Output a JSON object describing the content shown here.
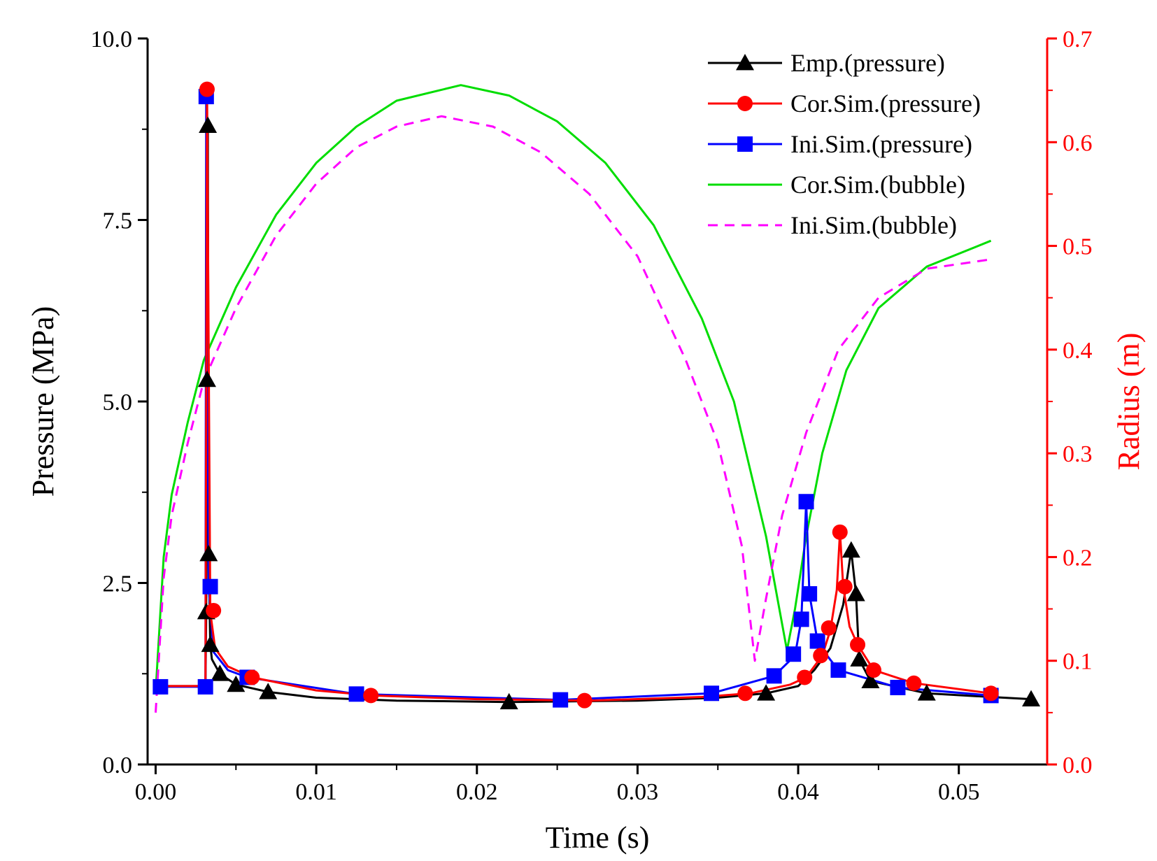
{
  "chart_data": {
    "type": "line",
    "xlabel": "Time (s)",
    "ylabel_left": "Pressure (MPa)",
    "ylabel_right": "Radius (m)",
    "xlim": [
      -0.0005,
      0.0555
    ],
    "ylim_left": [
      0,
      10
    ],
    "ylim_right": [
      0,
      0.7
    ],
    "x_ticks": [
      "0.00",
      "0.01",
      "0.02",
      "0.03",
      "0.04",
      "0.05"
    ],
    "y_left_ticks": [
      "0.0",
      "2.5",
      "5.0",
      "7.5",
      "10.0"
    ],
    "y_right_ticks": [
      "0.0",
      "0.1",
      "0.2",
      "0.3",
      "0.4",
      "0.5",
      "0.6",
      "0.7"
    ],
    "grid": false,
    "legend_position": "top-right",
    "colors": {
      "right_axis": "#ff0000"
    },
    "series": [
      {
        "name": "Emp.(pressure)",
        "axis": "left",
        "color": "#000000",
        "marker": "triangle",
        "points": [
          [
            0.0,
            1.08
          ],
          [
            0.0031,
            1.08
          ],
          [
            0.00315,
            2.1
          ],
          [
            0.0032,
            5.3
          ],
          [
            0.00325,
            8.8
          ],
          [
            0.0033,
            2.9
          ],
          [
            0.0034,
            1.65
          ],
          [
            0.0035,
            1.45
          ],
          [
            0.004,
            1.25
          ],
          [
            0.005,
            1.1
          ],
          [
            0.007,
            1.0
          ],
          [
            0.01,
            0.92
          ],
          [
            0.015,
            0.88
          ],
          [
            0.022,
            0.86
          ],
          [
            0.03,
            0.88
          ],
          [
            0.035,
            0.92
          ],
          [
            0.038,
            0.98
          ],
          [
            0.04,
            1.08
          ],
          [
            0.041,
            1.3
          ],
          [
            0.042,
            1.6
          ],
          [
            0.0428,
            2.2
          ],
          [
            0.0433,
            2.95
          ],
          [
            0.0436,
            2.35
          ],
          [
            0.0438,
            1.45
          ],
          [
            0.0445,
            1.15
          ],
          [
            0.048,
            0.98
          ],
          [
            0.052,
            0.93
          ],
          [
            0.0545,
            0.9
          ]
        ],
        "markers": [
          [
            0.00315,
            2.1
          ],
          [
            0.0032,
            5.3
          ],
          [
            0.00325,
            8.8
          ],
          [
            0.0033,
            2.9
          ],
          [
            0.0034,
            1.65
          ],
          [
            0.004,
            1.25
          ],
          [
            0.005,
            1.1
          ],
          [
            0.007,
            1.0
          ],
          [
            0.022,
            0.86
          ],
          [
            0.038,
            0.98
          ],
          [
            0.0433,
            2.95
          ],
          [
            0.0436,
            2.35
          ],
          [
            0.0438,
            1.45
          ],
          [
            0.0445,
            1.15
          ],
          [
            0.048,
            0.98
          ],
          [
            0.0545,
            0.9
          ]
        ]
      },
      {
        "name": "Cor.Sim.(pressure)",
        "axis": "left",
        "color": "#ff0000",
        "marker": "circle",
        "points": [
          [
            0.0,
            1.08
          ],
          [
            0.0031,
            1.08
          ],
          [
            0.0032,
            9.3
          ],
          [
            0.0034,
            2.1
          ],
          [
            0.0037,
            1.6
          ],
          [
            0.0045,
            1.35
          ],
          [
            0.006,
            1.2
          ],
          [
            0.01,
            1.02
          ],
          [
            0.0135,
            0.95
          ],
          [
            0.02,
            0.9
          ],
          [
            0.027,
            0.88
          ],
          [
            0.034,
            0.93
          ],
          [
            0.037,
            0.98
          ],
          [
            0.0395,
            1.1
          ],
          [
            0.0405,
            1.2
          ],
          [
            0.0415,
            1.5
          ],
          [
            0.042,
            1.85
          ],
          [
            0.0424,
            2.4
          ],
          [
            0.0426,
            3.2
          ],
          [
            0.0428,
            2.45
          ],
          [
            0.0432,
            1.9
          ],
          [
            0.0437,
            1.65
          ],
          [
            0.0447,
            1.3
          ],
          [
            0.0472,
            1.12
          ],
          [
            0.052,
            0.98
          ]
        ],
        "markers": [
          [
            0.0032,
            9.3
          ],
          [
            0.0036,
            2.12
          ],
          [
            0.006,
            1.2
          ],
          [
            0.0134,
            0.95
          ],
          [
            0.0267,
            0.88
          ],
          [
            0.0367,
            0.98
          ],
          [
            0.0404,
            1.2
          ],
          [
            0.0414,
            1.5
          ],
          [
            0.0419,
            1.88
          ],
          [
            0.0426,
            3.2
          ],
          [
            0.0429,
            2.45
          ],
          [
            0.0437,
            1.65
          ],
          [
            0.0447,
            1.3
          ],
          [
            0.0472,
            1.12
          ],
          [
            0.052,
            0.98
          ]
        ]
      },
      {
        "name": "Ini.Sim.(pressure)",
        "axis": "left",
        "color": "#0000ff",
        "marker": "square",
        "points": [
          [
            0.0,
            1.07
          ],
          [
            0.0031,
            1.07
          ],
          [
            0.00315,
            9.2
          ],
          [
            0.0033,
            2.45
          ],
          [
            0.0036,
            1.55
          ],
          [
            0.0045,
            1.3
          ],
          [
            0.0057,
            1.2
          ],
          [
            0.0125,
            0.97
          ],
          [
            0.0252,
            0.89
          ],
          [
            0.0346,
            0.98
          ],
          [
            0.0385,
            1.22
          ],
          [
            0.0398,
            1.5
          ],
          [
            0.0402,
            2.0
          ],
          [
            0.0405,
            3.62
          ],
          [
            0.0407,
            2.35
          ],
          [
            0.0412,
            1.7
          ],
          [
            0.0418,
            1.5
          ],
          [
            0.0425,
            1.3
          ],
          [
            0.0462,
            1.06
          ],
          [
            0.052,
            0.95
          ]
        ],
        "markers": [
          [
            0.0003,
            1.07
          ],
          [
            0.0031,
            1.07
          ],
          [
            0.00315,
            9.2
          ],
          [
            0.0034,
            2.45
          ],
          [
            0.0057,
            1.2
          ],
          [
            0.0125,
            0.97
          ],
          [
            0.0252,
            0.89
          ],
          [
            0.0346,
            0.98
          ],
          [
            0.0385,
            1.22
          ],
          [
            0.0397,
            1.52
          ],
          [
            0.0402,
            2.0
          ],
          [
            0.0405,
            3.62
          ],
          [
            0.0407,
            2.35
          ],
          [
            0.0412,
            1.7
          ],
          [
            0.0425,
            1.3
          ],
          [
            0.0462,
            1.06
          ],
          [
            0.052,
            0.95
          ]
        ]
      },
      {
        "name": "Cor.Sim.(bubble)",
        "axis": "right",
        "color": "#00dd00",
        "style": "solid",
        "points": [
          [
            0.0,
            0.07
          ],
          [
            0.0005,
            0.2
          ],
          [
            0.001,
            0.26
          ],
          [
            0.002,
            0.33
          ],
          [
            0.003,
            0.39
          ],
          [
            0.005,
            0.46
          ],
          [
            0.0075,
            0.53
          ],
          [
            0.01,
            0.58
          ],
          [
            0.0125,
            0.615
          ],
          [
            0.015,
            0.64
          ],
          [
            0.019,
            0.655
          ],
          [
            0.022,
            0.645
          ],
          [
            0.025,
            0.62
          ],
          [
            0.028,
            0.58
          ],
          [
            0.031,
            0.52
          ],
          [
            0.034,
            0.43
          ],
          [
            0.036,
            0.35
          ],
          [
            0.038,
            0.22
          ],
          [
            0.0393,
            0.11
          ],
          [
            0.0398,
            0.15
          ],
          [
            0.0405,
            0.22
          ],
          [
            0.0415,
            0.3
          ],
          [
            0.043,
            0.38
          ],
          [
            0.045,
            0.44
          ],
          [
            0.048,
            0.48
          ],
          [
            0.052,
            0.505
          ]
        ]
      },
      {
        "name": "Ini.Sim.(bubble)",
        "axis": "right",
        "color": "#ff00ff",
        "style": "dashed",
        "points": [
          [
            0.0,
            0.05
          ],
          [
            0.0005,
            0.18
          ],
          [
            0.001,
            0.24
          ],
          [
            0.002,
            0.31
          ],
          [
            0.003,
            0.37
          ],
          [
            0.005,
            0.44
          ],
          [
            0.0075,
            0.51
          ],
          [
            0.01,
            0.56
          ],
          [
            0.0125,
            0.595
          ],
          [
            0.015,
            0.615
          ],
          [
            0.0178,
            0.625
          ],
          [
            0.021,
            0.615
          ],
          [
            0.024,
            0.59
          ],
          [
            0.027,
            0.55
          ],
          [
            0.03,
            0.49
          ],
          [
            0.033,
            0.39
          ],
          [
            0.035,
            0.31
          ],
          [
            0.0365,
            0.21
          ],
          [
            0.0373,
            0.1
          ],
          [
            0.038,
            0.16
          ],
          [
            0.039,
            0.24
          ],
          [
            0.0405,
            0.32
          ],
          [
            0.0425,
            0.4
          ],
          [
            0.045,
            0.45
          ],
          [
            0.048,
            0.478
          ],
          [
            0.052,
            0.487
          ]
        ]
      }
    ]
  }
}
